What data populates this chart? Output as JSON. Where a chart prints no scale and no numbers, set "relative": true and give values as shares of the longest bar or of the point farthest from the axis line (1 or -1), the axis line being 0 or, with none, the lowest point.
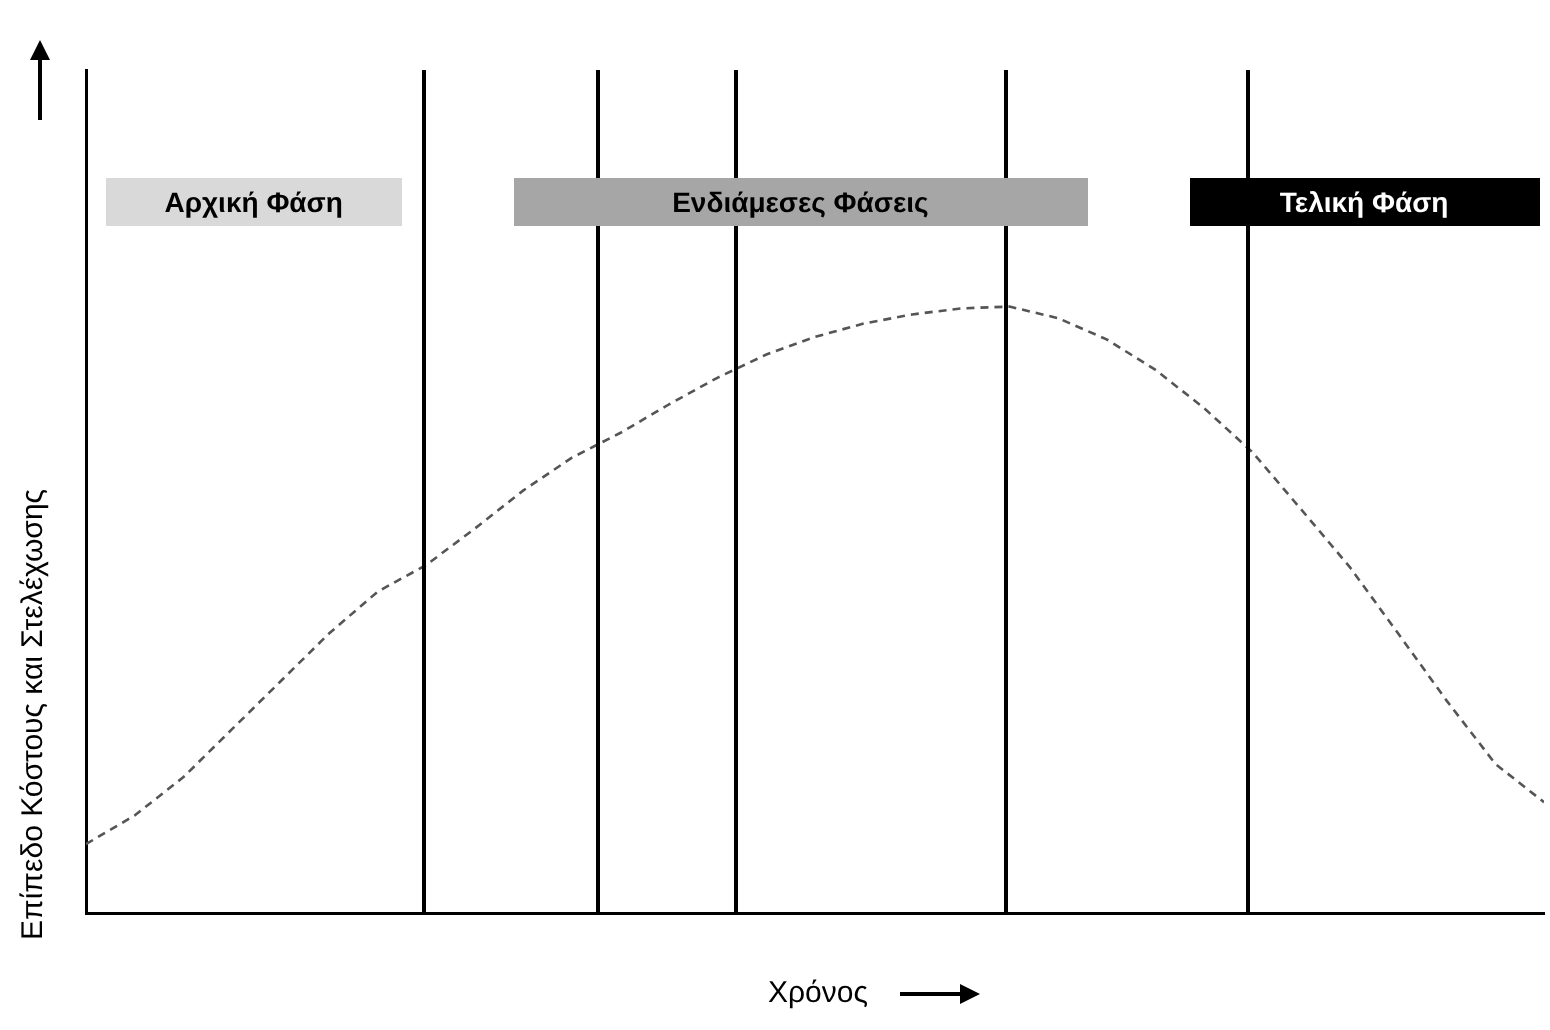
{
  "chart_data": {
    "type": "line",
    "relative": true,
    "xlabel": "Χρόνος",
    "ylabel": "Επίπεδο Κόστους και Στελέχωσης",
    "categories": [
      null,
      null,
      null,
      null,
      null,
      null,
      null,
      null,
      null,
      null,
      null,
      null,
      null,
      null,
      null,
      null,
      null,
      null,
      null,
      null,
      null,
      null,
      null,
      null,
      null,
      null,
      null,
      null,
      null,
      null,
      null
    ],
    "series": [
      {
        "color": "#555555",
        "values": [
          0.114,
          0.161,
          0.224,
          0.303,
          0.382,
          0.461,
          0.53,
          0.574,
          0.634,
          0.697,
          0.751,
          0.792,
          0.839,
          0.883,
          0.921,
          0.95,
          0.972,
          0.987,
          0.997,
          1,
          0.981,
          0.946,
          0.896,
          0.833,
          0.76,
          0.666,
          0.571,
          0.461,
          0.35,
          0.246,
          0.183
        ]
      }
    ],
    "line_style": "dashed",
    "marker": "none",
    "grid": false,
    "legend": false,
    "annotations": [
      "Αρχική Φάση",
      "Ενδιάμεσες Φάσεις",
      "Τελική Φάση"
    ]
  }
}
